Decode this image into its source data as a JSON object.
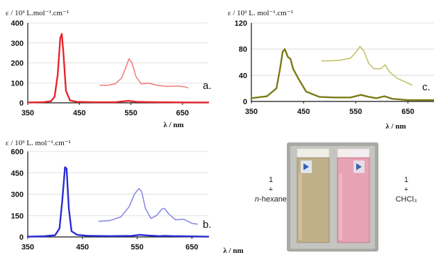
{
  "chart_data": [
    {
      "panel": "a.",
      "type": "line",
      "ylabel": "ε / 10³ L.mol⁻¹.cm⁻¹",
      "xlabel": "λ / nm",
      "xlim": [
        350,
        700
      ],
      "ylim": [
        0,
        400
      ],
      "xticks": [
        "350",
        "450",
        "550",
        "650"
      ],
      "yticks": [
        "0",
        "100",
        "200",
        "300",
        "400"
      ],
      "grid": true,
      "series": [
        {
          "color": "#e8242a",
          "x": [
            350,
            380,
            395,
            402,
            408,
            413,
            416,
            419,
            424,
            432,
            445,
            480,
            520,
            545,
            560,
            600,
            660,
            700
          ],
          "y": [
            2,
            3,
            8,
            30,
            140,
            325,
            345,
            250,
            60,
            12,
            5,
            3,
            3,
            10,
            5,
            3,
            2,
            2
          ]
        },
        {
          "color": "#f2807f",
          "x": [
            490,
            505,
            520,
            532,
            540,
            546,
            552,
            560,
            570,
            585,
            600,
            620,
            640,
            655,
            660
          ],
          "y": [
            88,
            88,
            95,
            125,
            175,
            220,
            200,
            130,
            95,
            98,
            88,
            82,
            84,
            80,
            75
          ]
        }
      ]
    },
    {
      "panel": "c.",
      "type": "line",
      "ylabel": "ε / 10³ L. mol⁻¹.cm⁻¹",
      "xlabel": "λ / nm",
      "xlim": [
        350,
        700
      ],
      "ylim": [
        0,
        120
      ],
      "xticks": [
        "350",
        "450",
        "550",
        "650"
      ],
      "yticks": [
        "0",
        "40",
        "80",
        "120"
      ],
      "grid": true,
      "series": [
        {
          "color": "#7a7a16",
          "x": [
            350,
            380,
            398,
            405,
            410,
            414,
            420,
            425,
            430,
            440,
            455,
            480,
            510,
            540,
            560,
            575,
            590,
            605,
            620,
            650,
            700
          ],
          "y": [
            5,
            8,
            20,
            50,
            76,
            80,
            68,
            65,
            50,
            35,
            15,
            7,
            6,
            6,
            10,
            7,
            5,
            8,
            4,
            2,
            2
          ]
        },
        {
          "color": "#c2c26a",
          "x": [
            485,
            500,
            520,
            540,
            550,
            558,
            565,
            575,
            585,
            598,
            606,
            615,
            630,
            645,
            658
          ],
          "y": [
            62,
            62,
            63,
            66,
            75,
            84,
            78,
            58,
            50,
            50,
            56,
            45,
            35,
            30,
            25
          ]
        }
      ]
    },
    {
      "panel": "b.",
      "type": "line",
      "ylabel": "ε / 10³ L. mol⁻¹.cm⁻¹",
      "xlabel": "λ / nm",
      "xlim": [
        350,
        680
      ],
      "ylim": [
        0,
        600
      ],
      "xticks": [
        "350",
        "450",
        "550",
        "650"
      ],
      "yticks": [
        "0",
        "150",
        "300",
        "450",
        "600"
      ],
      "grid": true,
      "series": [
        {
          "color": "#2b2bd6",
          "x": [
            350,
            380,
            400,
            408,
            413,
            418,
            421,
            425,
            430,
            440,
            460,
            500,
            540,
            555,
            570,
            590,
            600,
            615,
            650,
            680
          ],
          "y": [
            2,
            5,
            12,
            60,
            250,
            490,
            480,
            200,
            40,
            15,
            8,
            6,
            8,
            15,
            10,
            6,
            8,
            6,
            4,
            2
          ]
        },
        {
          "color": "#8a8ae8",
          "x": [
            480,
            500,
            520,
            535,
            545,
            553,
            558,
            565,
            575,
            585,
            595,
            600,
            608,
            620,
            635,
            650,
            660
          ],
          "y": [
            110,
            115,
            140,
            210,
            300,
            340,
            320,
            200,
            130,
            150,
            195,
            200,
            160,
            120,
            125,
            95,
            90
          ]
        }
      ]
    }
  ],
  "photo": {
    "left_label_1": "1",
    "left_label_plus": "+",
    "left_label_solvent": "n-hexane",
    "right_label_1": "1",
    "right_label_plus": "+",
    "right_label_solvent": "CHCl₃",
    "left_vial_color": "#c0b08a",
    "right_vial_color": "#e7a2b4"
  }
}
